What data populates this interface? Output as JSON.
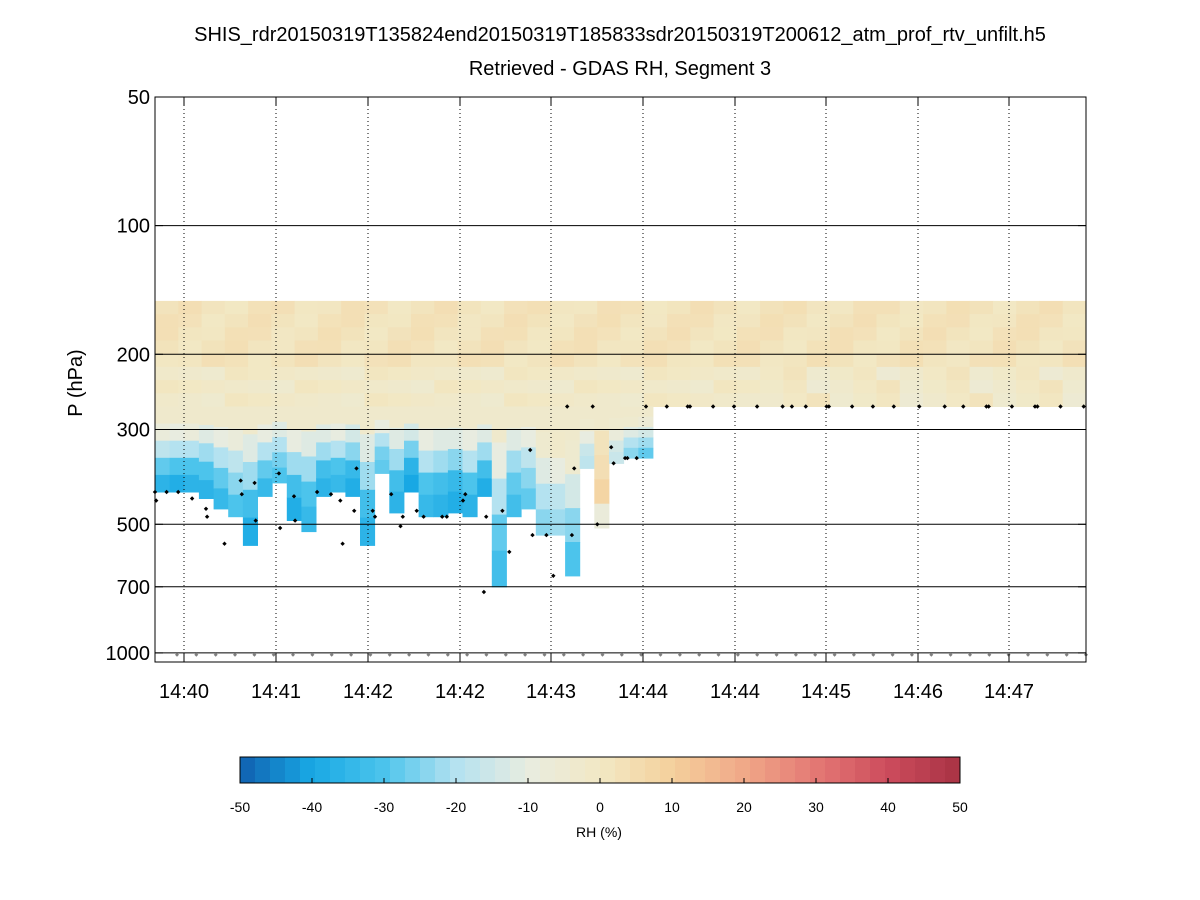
{
  "chart_data": {
    "type": "heatmap",
    "title": "SHIS_rdr20150319T135824end20150319T185833sdr20150319T200612_atm_prof_rtv_unfilt.h5",
    "subtitle": "Retrieved - GDAS RH, Segment 3",
    "ylabel": "P (hPa)",
    "y_scale": "log",
    "y_reversed": true,
    "ylim": [
      1050,
      50
    ],
    "y_ticks": [
      50,
      100,
      200,
      300,
      500,
      700,
      1000
    ],
    "y_tick_labels": [
      "50",
      "100",
      "200",
      "300",
      "500",
      "700",
      "1000"
    ],
    "x_ticks": [
      "14:40",
      "14:41",
      "14:42",
      "14:42",
      "14:43",
      "14:44",
      "14:44",
      "14:45",
      "14:46",
      "14:47"
    ],
    "grid": "dotted vertical at time ticks, solid horizontal at pressure ticks",
    "colorbar": {
      "label": "RH (%)",
      "min": -50,
      "max": 50,
      "ticks": [
        -50,
        -40,
        -30,
        -20,
        -10,
        0,
        10,
        20,
        30,
        40,
        50
      ],
      "tick_labels": [
        "-50",
        "-40",
        "-30",
        "-20",
        "-10",
        "0",
        "10",
        "20",
        "30",
        "40",
        "50"
      ],
      "colormap": [
        "#1060b0",
        "#18a8e4",
        "#4cc4ec",
        "#b4e2f0",
        "#e8ece0",
        "#f2e8c4",
        "#f4d09c",
        "#f0a888",
        "#e47874",
        "#cc4c5c",
        "#a83244"
      ]
    },
    "profile_top_hPa": 150,
    "columns": [
      {
        "bottom": 420,
        "neg": [
          0.0,
          0.2,
          0.45,
          0.7,
          0.9
        ]
      },
      {
        "bottom": 420,
        "neg": [
          0.0,
          0.25,
          0.5,
          0.75,
          0.95
        ]
      },
      {
        "bottom": 420,
        "neg": [
          0.0,
          0.2,
          0.5,
          0.75,
          0.9
        ]
      },
      {
        "bottom": 435,
        "neg": [
          0.0,
          0.3,
          0.55,
          0.75,
          0.9
        ]
      },
      {
        "bottom": 460,
        "neg": [
          0.0,
          0.25,
          0.5,
          0.7,
          0.85
        ]
      },
      {
        "bottom": 480,
        "neg": [
          0.0,
          0.2,
          0.45,
          0.6,
          0.75
        ]
      },
      {
        "bottom": 560,
        "neg": [
          0.0,
          0.3,
          0.55,
          0.8,
          0.95
        ]
      },
      {
        "bottom": 430,
        "neg": [
          0.0,
          0.25,
          0.5,
          0.7,
          0.85
        ]
      },
      {
        "bottom": 400,
        "neg": [
          0.0,
          0.3,
          0.5,
          0.65,
          0.75
        ]
      },
      {
        "bottom": 490,
        "neg": [
          0.0,
          0.25,
          0.55,
          0.8,
          0.95
        ]
      },
      {
        "bottom": 520,
        "neg": [
          0.0,
          0.3,
          0.55,
          0.75,
          0.85
        ]
      },
      {
        "bottom": 430,
        "neg": [
          0.0,
          0.3,
          0.55,
          0.8,
          0.9
        ]
      },
      {
        "bottom": 420,
        "neg": [
          0.0,
          0.25,
          0.5,
          0.75,
          0.85
        ]
      },
      {
        "bottom": 430,
        "neg": [
          0.0,
          0.35,
          0.6,
          0.85,
          0.95
        ]
      },
      {
        "bottom": 560,
        "neg": [
          0.0,
          0.3,
          0.55,
          0.8,
          0.9
        ]
      },
      {
        "bottom": 380,
        "neg": [
          0.0,
          0.25,
          0.5,
          0.65,
          0.7
        ]
      },
      {
        "bottom": 470,
        "neg": [
          0.0,
          0.3,
          0.55,
          0.8,
          0.9
        ]
      },
      {
        "bottom": 420,
        "neg": [
          0.0,
          0.35,
          0.65,
          0.9,
          1.0
        ]
      },
      {
        "bottom": 480,
        "neg": [
          0.0,
          0.25,
          0.5,
          0.75,
          0.85
        ]
      },
      {
        "bottom": 480,
        "neg": [
          0.0,
          0.3,
          0.55,
          0.8,
          0.9
        ]
      },
      {
        "bottom": 470,
        "neg": [
          0.0,
          0.3,
          0.6,
          0.85,
          0.95
        ]
      },
      {
        "bottom": 480,
        "neg": [
          0.0,
          0.25,
          0.5,
          0.75,
          0.9
        ]
      },
      {
        "bottom": 430,
        "neg": [
          0.0,
          0.3,
          0.55,
          0.8,
          0.95
        ]
      },
      {
        "bottom": 700,
        "neg": [
          0.0,
          0.25,
          0.5,
          0.7,
          0.8
        ]
      },
      {
        "bottom": 480,
        "neg": [
          0.0,
          0.3,
          0.55,
          0.7,
          0.8
        ]
      },
      {
        "bottom": 460,
        "neg": [
          0.0,
          0.25,
          0.45,
          0.6,
          0.7
        ]
      },
      {
        "bottom": 530,
        "neg": [
          0.0,
          0.1,
          0.3,
          0.5,
          0.6
        ]
      },
      {
        "bottom": 530,
        "neg": [
          0.0,
          0.05,
          0.25,
          0.45,
          0.55
        ]
      },
      {
        "bottom": 660,
        "neg": [
          0.0,
          0.1,
          0.35,
          0.6,
          0.75
        ]
      },
      {
        "bottom": 370,
        "neg": [
          0.0,
          0.1,
          0.25,
          0.4,
          0.45
        ]
      },
      {
        "bottom": 510,
        "neg": [
          0.0,
          -0.05,
          -0.1,
          -0.2,
          0.2
        ]
      },
      {
        "bottom": 360,
        "neg": [
          0.0,
          0.1,
          0.2,
          0.35,
          0.4
        ]
      },
      {
        "bottom": 350,
        "neg": [
          0.0,
          0.1,
          0.3,
          0.5,
          0.6
        ]
      },
      {
        "bottom": 350,
        "neg": [
          0.0,
          0.15,
          0.35,
          0.55,
          0.7
        ]
      }
    ],
    "retrieval_points": [
      {
        "t": 0,
        "p": 420
      },
      {
        "t": 0.05,
        "p": 440
      },
      {
        "t": 0.5,
        "p": 420
      },
      {
        "t": 1.0,
        "p": 420
      },
      {
        "t": 1.6,
        "p": 435
      },
      {
        "t": 2.2,
        "p": 460
      },
      {
        "t": 2.25,
        "p": 480
      },
      {
        "t": 3.0,
        "p": 555
      },
      {
        "t": 3.7,
        "p": 395
      },
      {
        "t": 3.75,
        "p": 425
      },
      {
        "t": 4.3,
        "p": 400
      },
      {
        "t": 4.35,
        "p": 490
      },
      {
        "t": 5.4,
        "p": 510
      },
      {
        "t": 5.35,
        "p": 380
      },
      {
        "t": 6.0,
        "p": 430
      },
      {
        "t": 6.05,
        "p": 490
      },
      {
        "t": 7.0,
        "p": 420
      },
      {
        "t": 7.6,
        "p": 425
      },
      {
        "t": 8.0,
        "p": 440
      },
      {
        "t": 8.1,
        "p": 555
      },
      {
        "t": 8.6,
        "p": 465
      },
      {
        "t": 8.7,
        "p": 370
      },
      {
        "t": 9.4,
        "p": 465
      },
      {
        "t": 9.5,
        "p": 480
      },
      {
        "t": 10.2,
        "p": 425
      },
      {
        "t": 10.6,
        "p": 505
      },
      {
        "t": 10.7,
        "p": 480
      },
      {
        "t": 11.3,
        "p": 465
      },
      {
        "t": 11.6,
        "p": 480
      },
      {
        "t": 12.4,
        "p": 480
      },
      {
        "t": 12.6,
        "p": 480
      },
      {
        "t": 13.3,
        "p": 440
      },
      {
        "t": 13.4,
        "p": 425
      },
      {
        "t": 14.2,
        "p": 720
      },
      {
        "t": 14.3,
        "p": 480
      },
      {
        "t": 15.0,
        "p": 465
      },
      {
        "t": 15.3,
        "p": 580
      },
      {
        "t": 16.2,
        "p": 335
      },
      {
        "t": 16.3,
        "p": 530
      },
      {
        "t": 16.9,
        "p": 530
      },
      {
        "t": 17.2,
        "p": 660
      },
      {
        "t": 18.0,
        "p": 530
      },
      {
        "t": 17.8,
        "p": 265
      },
      {
        "t": 18.1,
        "p": 370
      },
      {
        "t": 18.9,
        "p": 265
      },
      {
        "t": 19.1,
        "p": 500
      },
      {
        "t": 19.7,
        "p": 330
      },
      {
        "t": 19.8,
        "p": 360
      },
      {
        "t": 20.3,
        "p": 350
      },
      {
        "t": 20.4,
        "p": 350
      },
      {
        "t": 20.8,
        "p": 350
      },
      {
        "t": 21.2,
        "p": 265
      },
      {
        "t": 22.1,
        "p": 265
      },
      {
        "t": 23.0,
        "p": 265
      },
      {
        "t": 23.1,
        "p": 265
      },
      {
        "t": 24.1,
        "p": 265
      },
      {
        "t": 25.0,
        "p": 265
      },
      {
        "t": 26.0,
        "p": 265
      },
      {
        "t": 27.1,
        "p": 265
      },
      {
        "t": 27.5,
        "p": 265
      },
      {
        "t": 28.1,
        "p": 265
      },
      {
        "t": 29.0,
        "p": 265
      },
      {
        "t": 29.1,
        "p": 265
      },
      {
        "t": 30.1,
        "p": 265
      },
      {
        "t": 31.0,
        "p": 265
      },
      {
        "t": 31.9,
        "p": 265
      },
      {
        "t": 33.0,
        "p": 265
      },
      {
        "t": 34.1,
        "p": 265
      },
      {
        "t": 34.9,
        "p": 265
      },
      {
        "t": 35.9,
        "p": 265
      },
      {
        "t": 36.0,
        "p": 265
      },
      {
        "t": 37.0,
        "p": 265
      },
      {
        "t": 38.0,
        "p": 265
      },
      {
        "t": 38.1,
        "p": 265
      },
      {
        "t": 39.1,
        "p": 265
      },
      {
        "t": 40.1,
        "p": 265
      }
    ],
    "surface_points_hPa": 1010,
    "surface_point_count": 48
  }
}
